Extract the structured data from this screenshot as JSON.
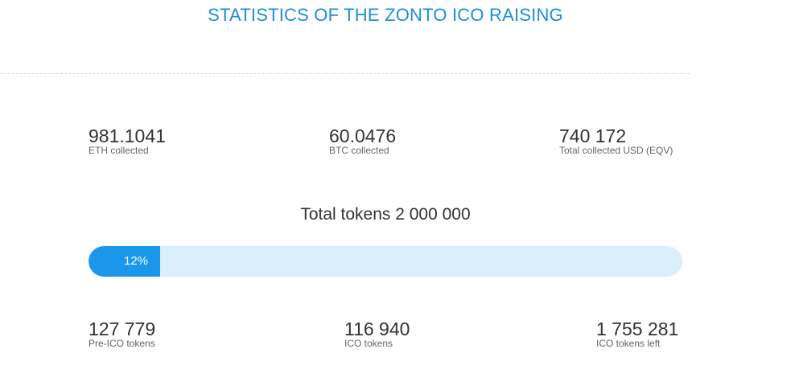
{
  "title": "STATISTICS OF THE ZONTO ICO RAISING",
  "collected": {
    "eth": {
      "value": "981.1041",
      "label": "ETH collected"
    },
    "btc": {
      "value": "60.0476",
      "label": "BTC collected"
    },
    "usd": {
      "value": "740 172",
      "label": "Total collected USD (EQV)"
    }
  },
  "total_tokens": "Total tokens 2 000 000",
  "progress": {
    "percent": 12,
    "label": "12%"
  },
  "tokens": {
    "pre_ico": {
      "value": "127 779",
      "label": "Pre-ICO tokens"
    },
    "ico": {
      "value": "116 940",
      "label": "ICO tokens"
    },
    "left": {
      "value": "1 755 281",
      "label": "ICO tokens left"
    }
  },
  "colors": {
    "accent": "#1a8fd8",
    "progress_fill": "#1a97eb",
    "progress_track": "#dbeefb"
  }
}
